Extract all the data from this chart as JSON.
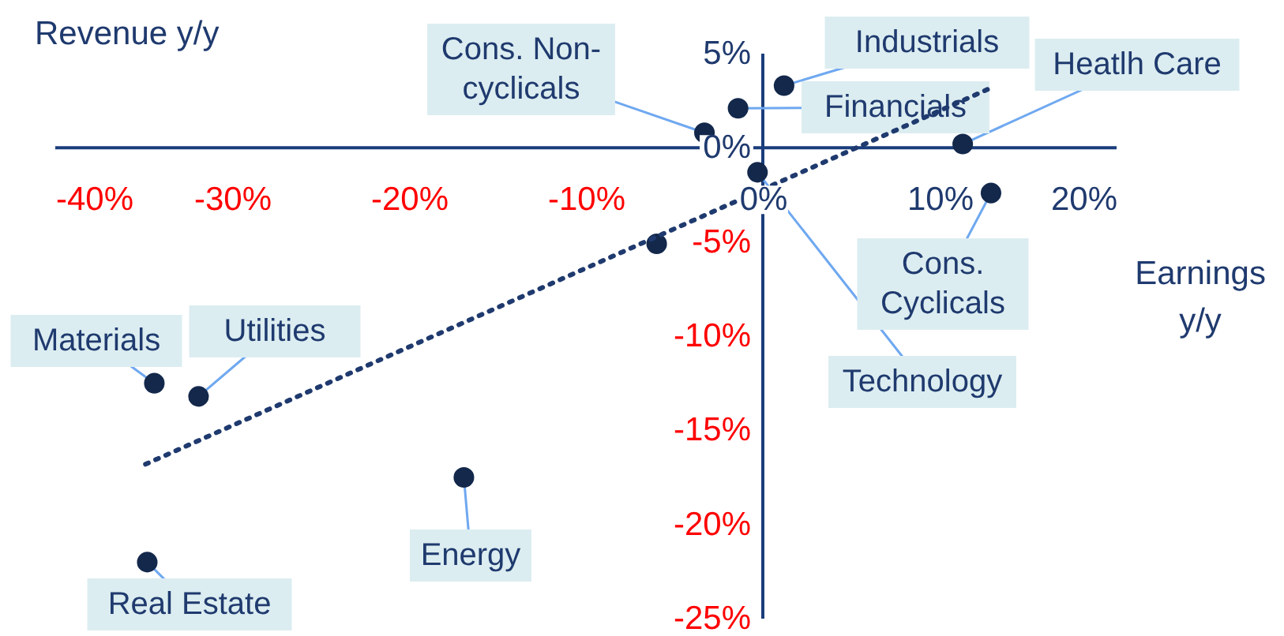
{
  "chart_data": {
    "type": "scatter",
    "xlabel": "Earnings\ny/y",
    "ylabel": "Revenue y/y",
    "xlim": [
      -40,
      20
    ],
    "ylim": [
      -25,
      5
    ],
    "xticks": [
      {
        "value": -40,
        "label": "-40%"
      },
      {
        "value": -30,
        "label": "-30%"
      },
      {
        "value": -20,
        "label": "-20%"
      },
      {
        "value": -10,
        "label": "-10%"
      },
      {
        "value": 0,
        "label": "0%"
      },
      {
        "value": 10,
        "label": "10%"
      },
      {
        "value": 20,
        "label": "20%"
      }
    ],
    "yticks": [
      {
        "value": 5,
        "label": "5%"
      },
      {
        "value": 0,
        "label": "0%"
      },
      {
        "value": -5,
        "label": "-5%"
      },
      {
        "value": -10,
        "label": "-10%"
      },
      {
        "value": -15,
        "label": "-15%"
      },
      {
        "value": -20,
        "label": "-20%"
      },
      {
        "value": -25,
        "label": "-25%"
      }
    ],
    "grid": false,
    "marker": "circle",
    "series": [
      {
        "color": "#13284b",
        "x": [
          1.2,
          -1.4,
          -3.3,
          11.3,
          -0.3,
          12.9,
          -6.0,
          -34.4,
          -31.9,
          -16.9,
          -34.8
        ],
        "values": [
          3.3,
          2.1,
          0.8,
          0.2,
          -1.3,
          -2.4,
          -5.1,
          -12.5,
          -13.2,
          -17.5,
          -22.0
        ]
      },
      {
        "type": "line",
        "color": "#1f3a6e",
        "line_style": "dotted",
        "marker": "none",
        "x": [
          -34.9,
          12.7
        ],
        "values": [
          -16.8,
          3.1
        ]
      }
    ],
    "annotations": [
      {
        "text": "Industrials",
        "x": 1.2,
        "y": 3.3
      },
      {
        "text": "Financials",
        "x": -1.4,
        "y": 2.1
      },
      {
        "text": "Cons. Non-\ncyclicals",
        "x": -3.3,
        "y": 0.8
      },
      {
        "text": "Heatlh Care",
        "x": 11.3,
        "y": 0.2
      },
      {
        "text": "Technology",
        "x": -0.3,
        "y": -1.3
      },
      {
        "text": "Cons.\nCyclicals",
        "x": 12.9,
        "y": -2.4
      },
      {
        "text": "Materials",
        "x": -34.4,
        "y": -12.5
      },
      {
        "text": "Utilities",
        "x": -31.9,
        "y": -13.2
      },
      {
        "text": "Energy",
        "x": -16.9,
        "y": -17.5
      },
      {
        "text": "Real Estate",
        "x": -34.8,
        "y": -22.0
      }
    ]
  }
}
